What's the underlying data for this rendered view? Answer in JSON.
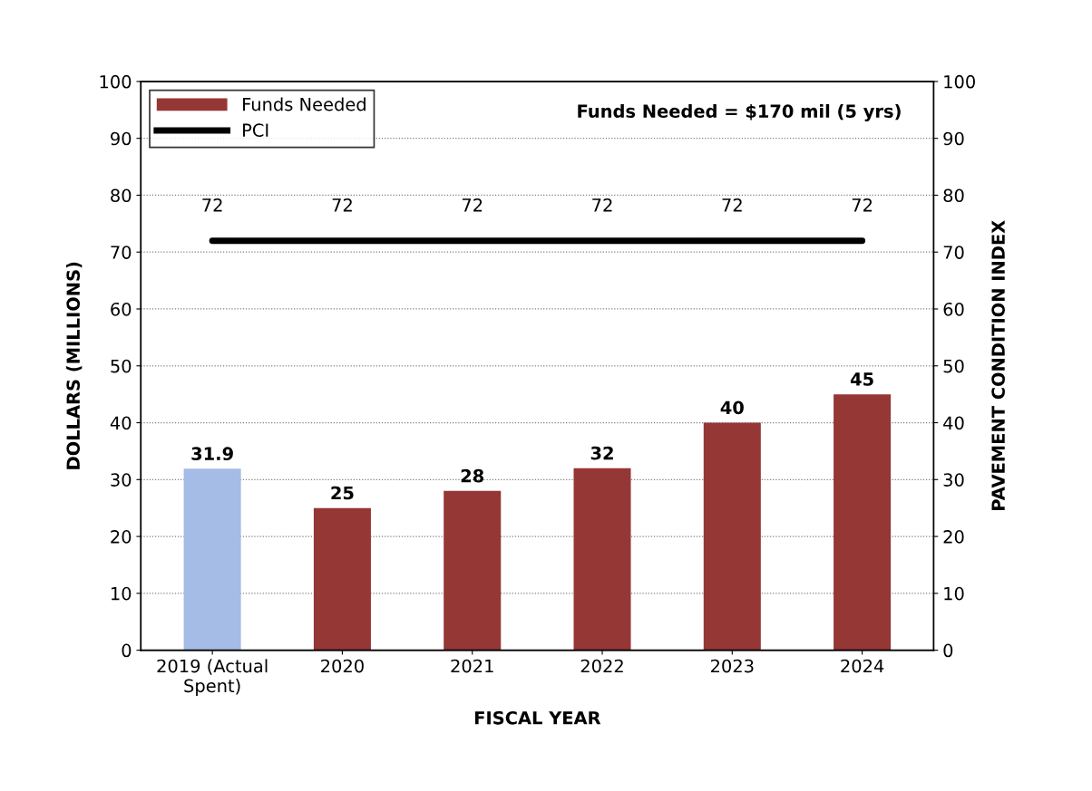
{
  "chart_data": {
    "type": "bar",
    "xlabel": "FISCAL YEAR",
    "ylabel": "DOLLARS (MILLIONS)",
    "y2label": "PAVEMENT CONDITION INDEX",
    "categories": [
      "2019 (Actual\nSpent)",
      "2020",
      "2021",
      "2022",
      "2023",
      "2024"
    ],
    "series": [
      {
        "name": "Funds Needed",
        "color": "#953735",
        "colors": [
          "#a4bce6",
          "#953735",
          "#953735",
          "#953735",
          "#953735",
          "#953735"
        ],
        "values": [
          31.9,
          25,
          28,
          32,
          40,
          45
        ]
      },
      {
        "name": "PCI",
        "type": "line",
        "axis": "y2",
        "color": "#000000",
        "values": [
          72,
          72,
          72,
          72,
          72,
          72
        ]
      }
    ],
    "ylim": [
      0,
      100
    ],
    "yticks": [
      0,
      10,
      20,
      30,
      40,
      50,
      60,
      70,
      80,
      90,
      100
    ],
    "y2lim": [
      0,
      100
    ],
    "y2ticks": [
      0,
      10,
      20,
      30,
      40,
      50,
      60,
      70,
      80,
      90,
      100
    ],
    "grid": "y",
    "legend": "top left",
    "data_labels": true,
    "marker": "none",
    "line_style": "solid",
    "annotations": [
      "Funds Needed = $170 mil (5 yrs)"
    ]
  }
}
